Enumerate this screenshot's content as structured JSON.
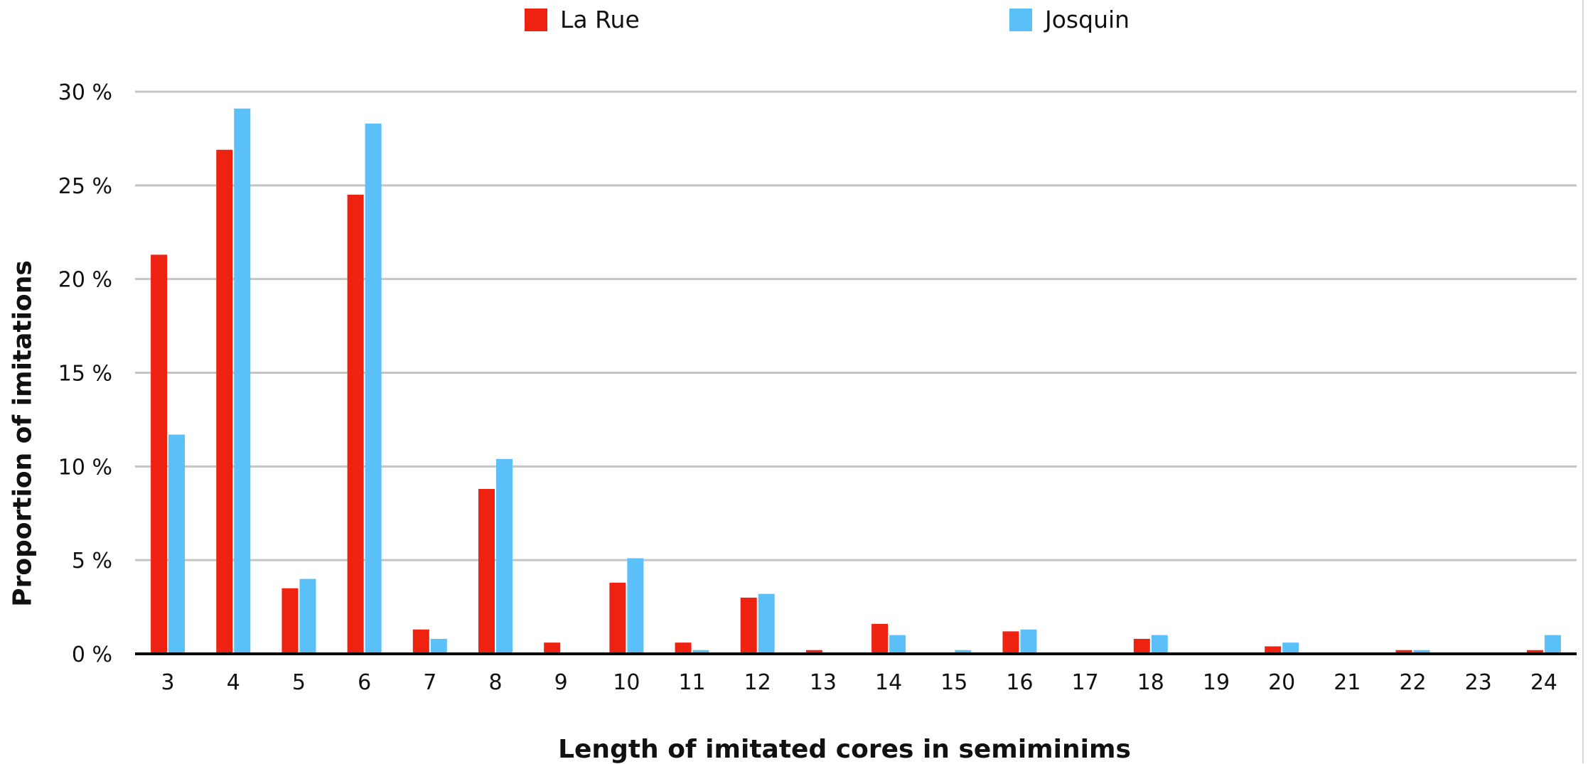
{
  "chart_data": {
    "type": "bar",
    "title": "",
    "xlabel": "Length of imitated cores in semiminims",
    "ylabel": "Proportion of imitations",
    "ylim": [
      0,
      30
    ],
    "ytick_labels": [
      "0 %",
      "5 %",
      "10 %",
      "15 %",
      "20 %",
      "25 %",
      "30 %"
    ],
    "categories": [
      "3",
      "4",
      "5",
      "6",
      "7",
      "8",
      "9",
      "10",
      "11",
      "12",
      "13",
      "14",
      "15",
      "16",
      "17",
      "18",
      "19",
      "20",
      "21",
      "22",
      "23",
      "24"
    ],
    "series": [
      {
        "name": "La Rue",
        "color": "#ee2211",
        "values": [
          21.3,
          26.9,
          3.5,
          24.5,
          1.3,
          8.8,
          0.6,
          3.8,
          0.6,
          3.0,
          0.2,
          1.6,
          0.0,
          1.2,
          0.0,
          0.8,
          0.0,
          0.4,
          0.0,
          0.2,
          0.0,
          0.2
        ]
      },
      {
        "name": "Josquin",
        "color": "#5bc0f8",
        "values": [
          11.7,
          29.1,
          4.0,
          28.3,
          0.8,
          10.4,
          0.0,
          5.1,
          0.2,
          3.2,
          0.0,
          1.0,
          0.2,
          1.3,
          0.0,
          1.0,
          0.0,
          0.6,
          0.0,
          0.2,
          0.0,
          1.0
        ]
      }
    ],
    "grid": true,
    "legend_position": "top"
  }
}
